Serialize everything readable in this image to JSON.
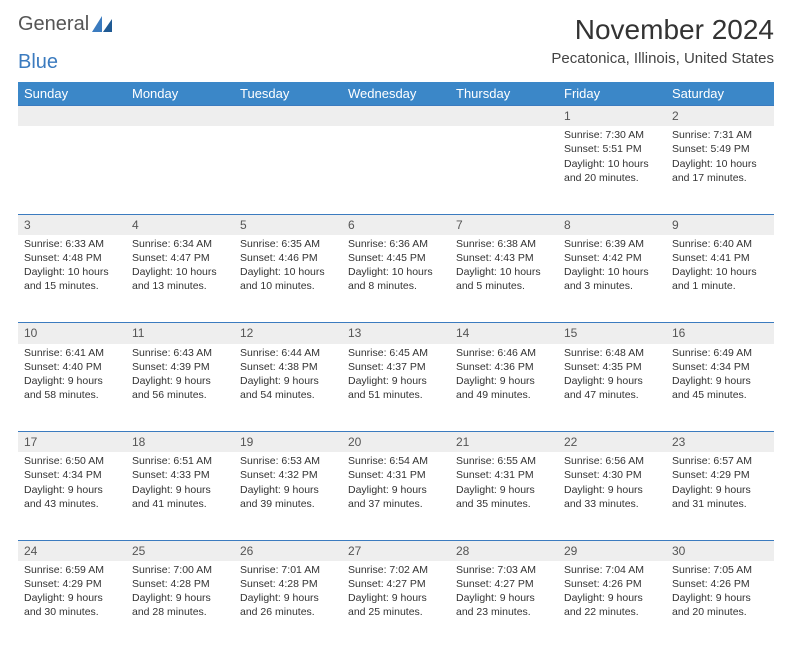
{
  "logo": {
    "word1": "General",
    "word2": "Blue"
  },
  "title": "November 2024",
  "location": "Pecatonica, Illinois, United States",
  "colors": {
    "header_bg": "#3b87c8",
    "header_text": "#ffffff",
    "daynum_bg": "#eeeeee",
    "border": "#3b7bbf",
    "text": "#333333",
    "logo_gray": "#555555",
    "logo_blue": "#3b7bbf"
  },
  "weekdays": [
    "Sunday",
    "Monday",
    "Tuesday",
    "Wednesday",
    "Thursday",
    "Friday",
    "Saturday"
  ],
  "weeks": [
    [
      null,
      null,
      null,
      null,
      null,
      {
        "n": "1",
        "sr": "7:30 AM",
        "ss": "5:51 PM",
        "dl": "10 hours and 20 minutes."
      },
      {
        "n": "2",
        "sr": "7:31 AM",
        "ss": "5:49 PM",
        "dl": "10 hours and 17 minutes."
      }
    ],
    [
      {
        "n": "3",
        "sr": "6:33 AM",
        "ss": "4:48 PM",
        "dl": "10 hours and 15 minutes."
      },
      {
        "n": "4",
        "sr": "6:34 AM",
        "ss": "4:47 PM",
        "dl": "10 hours and 13 minutes."
      },
      {
        "n": "5",
        "sr": "6:35 AM",
        "ss": "4:46 PM",
        "dl": "10 hours and 10 minutes."
      },
      {
        "n": "6",
        "sr": "6:36 AM",
        "ss": "4:45 PM",
        "dl": "10 hours and 8 minutes."
      },
      {
        "n": "7",
        "sr": "6:38 AM",
        "ss": "4:43 PM",
        "dl": "10 hours and 5 minutes."
      },
      {
        "n": "8",
        "sr": "6:39 AM",
        "ss": "4:42 PM",
        "dl": "10 hours and 3 minutes."
      },
      {
        "n": "9",
        "sr": "6:40 AM",
        "ss": "4:41 PM",
        "dl": "10 hours and 1 minute."
      }
    ],
    [
      {
        "n": "10",
        "sr": "6:41 AM",
        "ss": "4:40 PM",
        "dl": "9 hours and 58 minutes."
      },
      {
        "n": "11",
        "sr": "6:43 AM",
        "ss": "4:39 PM",
        "dl": "9 hours and 56 minutes."
      },
      {
        "n": "12",
        "sr": "6:44 AM",
        "ss": "4:38 PM",
        "dl": "9 hours and 54 minutes."
      },
      {
        "n": "13",
        "sr": "6:45 AM",
        "ss": "4:37 PM",
        "dl": "9 hours and 51 minutes."
      },
      {
        "n": "14",
        "sr": "6:46 AM",
        "ss": "4:36 PM",
        "dl": "9 hours and 49 minutes."
      },
      {
        "n": "15",
        "sr": "6:48 AM",
        "ss": "4:35 PM",
        "dl": "9 hours and 47 minutes."
      },
      {
        "n": "16",
        "sr": "6:49 AM",
        "ss": "4:34 PM",
        "dl": "9 hours and 45 minutes."
      }
    ],
    [
      {
        "n": "17",
        "sr": "6:50 AM",
        "ss": "4:34 PM",
        "dl": "9 hours and 43 minutes."
      },
      {
        "n": "18",
        "sr": "6:51 AM",
        "ss": "4:33 PM",
        "dl": "9 hours and 41 minutes."
      },
      {
        "n": "19",
        "sr": "6:53 AM",
        "ss": "4:32 PM",
        "dl": "9 hours and 39 minutes."
      },
      {
        "n": "20",
        "sr": "6:54 AM",
        "ss": "4:31 PM",
        "dl": "9 hours and 37 minutes."
      },
      {
        "n": "21",
        "sr": "6:55 AM",
        "ss": "4:31 PM",
        "dl": "9 hours and 35 minutes."
      },
      {
        "n": "22",
        "sr": "6:56 AM",
        "ss": "4:30 PM",
        "dl": "9 hours and 33 minutes."
      },
      {
        "n": "23",
        "sr": "6:57 AM",
        "ss": "4:29 PM",
        "dl": "9 hours and 31 minutes."
      }
    ],
    [
      {
        "n": "24",
        "sr": "6:59 AM",
        "ss": "4:29 PM",
        "dl": "9 hours and 30 minutes."
      },
      {
        "n": "25",
        "sr": "7:00 AM",
        "ss": "4:28 PM",
        "dl": "9 hours and 28 minutes."
      },
      {
        "n": "26",
        "sr": "7:01 AM",
        "ss": "4:28 PM",
        "dl": "9 hours and 26 minutes."
      },
      {
        "n": "27",
        "sr": "7:02 AM",
        "ss": "4:27 PM",
        "dl": "9 hours and 25 minutes."
      },
      {
        "n": "28",
        "sr": "7:03 AM",
        "ss": "4:27 PM",
        "dl": "9 hours and 23 minutes."
      },
      {
        "n": "29",
        "sr": "7:04 AM",
        "ss": "4:26 PM",
        "dl": "9 hours and 22 minutes."
      },
      {
        "n": "30",
        "sr": "7:05 AM",
        "ss": "4:26 PM",
        "dl": "9 hours and 20 minutes."
      }
    ]
  ],
  "labels": {
    "sunrise": "Sunrise:",
    "sunset": "Sunset:",
    "daylight": "Daylight:"
  }
}
